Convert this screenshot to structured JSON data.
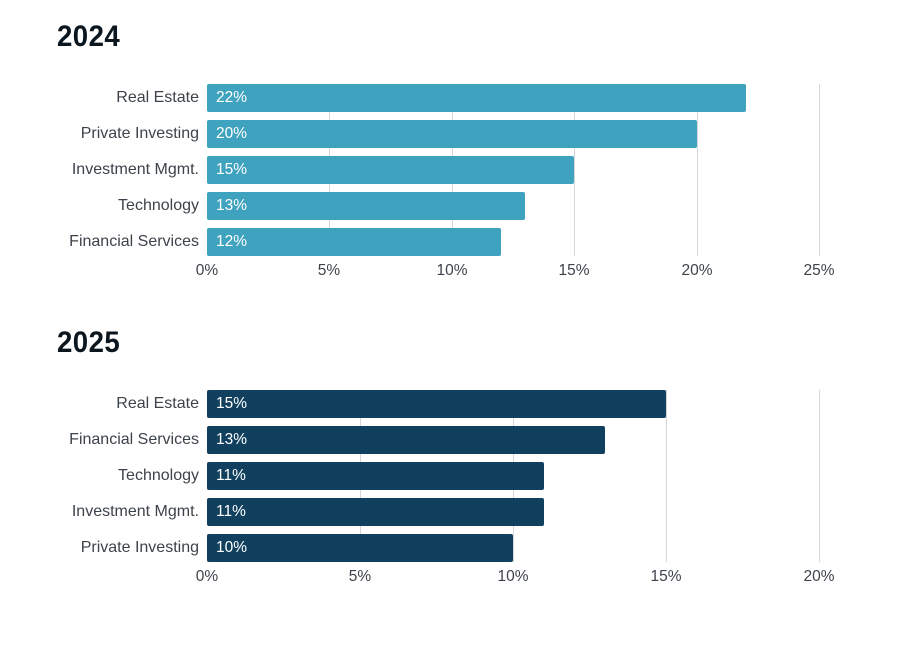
{
  "page": {
    "background": "#ffffff"
  },
  "colors": {
    "title_text": "#0c161e",
    "category_text": "#3d434a",
    "axis_text": "#3d434a",
    "gridline": "#d5d7d9",
    "bar_value_text": "#ffffff",
    "bar_2024": "#3fa2be",
    "bar_2025": "#11405f"
  },
  "chart_data": [
    {
      "type": "bar",
      "orientation": "horizontal",
      "title": "2024",
      "categories": [
        "Real Estate",
        "Private Investing",
        "Investment Mgmt.",
        "Technology",
        "Financial Services"
      ],
      "values": [
        22,
        20,
        15,
        13,
        12
      ],
      "value_labels": [
        "22%",
        "20%",
        "15%",
        "13%",
        "12%"
      ],
      "bar_color": "#3fa2be",
      "xlim": [
        0,
        25
      ],
      "tick_values": [
        0,
        5,
        10,
        15,
        20,
        25
      ],
      "tick_labels": [
        "0%",
        "5%",
        "10%",
        "15%",
        "20%",
        "25%"
      ],
      "grid": true,
      "legend": false,
      "value_label_position": "inside-start"
    },
    {
      "type": "bar",
      "orientation": "horizontal",
      "title": "2025",
      "categories": [
        "Real Estate",
        "Financial Services",
        "Technology",
        "Investment Mgmt.",
        "Private Investing"
      ],
      "values": [
        15,
        13,
        11,
        11,
        10
      ],
      "value_labels": [
        "15%",
        "13%",
        "11%",
        "11%",
        "10%"
      ],
      "bar_color": "#11405f",
      "xlim": [
        0,
        20
      ],
      "tick_values": [
        0,
        5,
        10,
        15,
        20
      ],
      "tick_labels": [
        "0%",
        "5%",
        "10%",
        "15%",
        "20%"
      ],
      "grid": true,
      "legend": false,
      "value_label_position": "inside-start"
    }
  ]
}
